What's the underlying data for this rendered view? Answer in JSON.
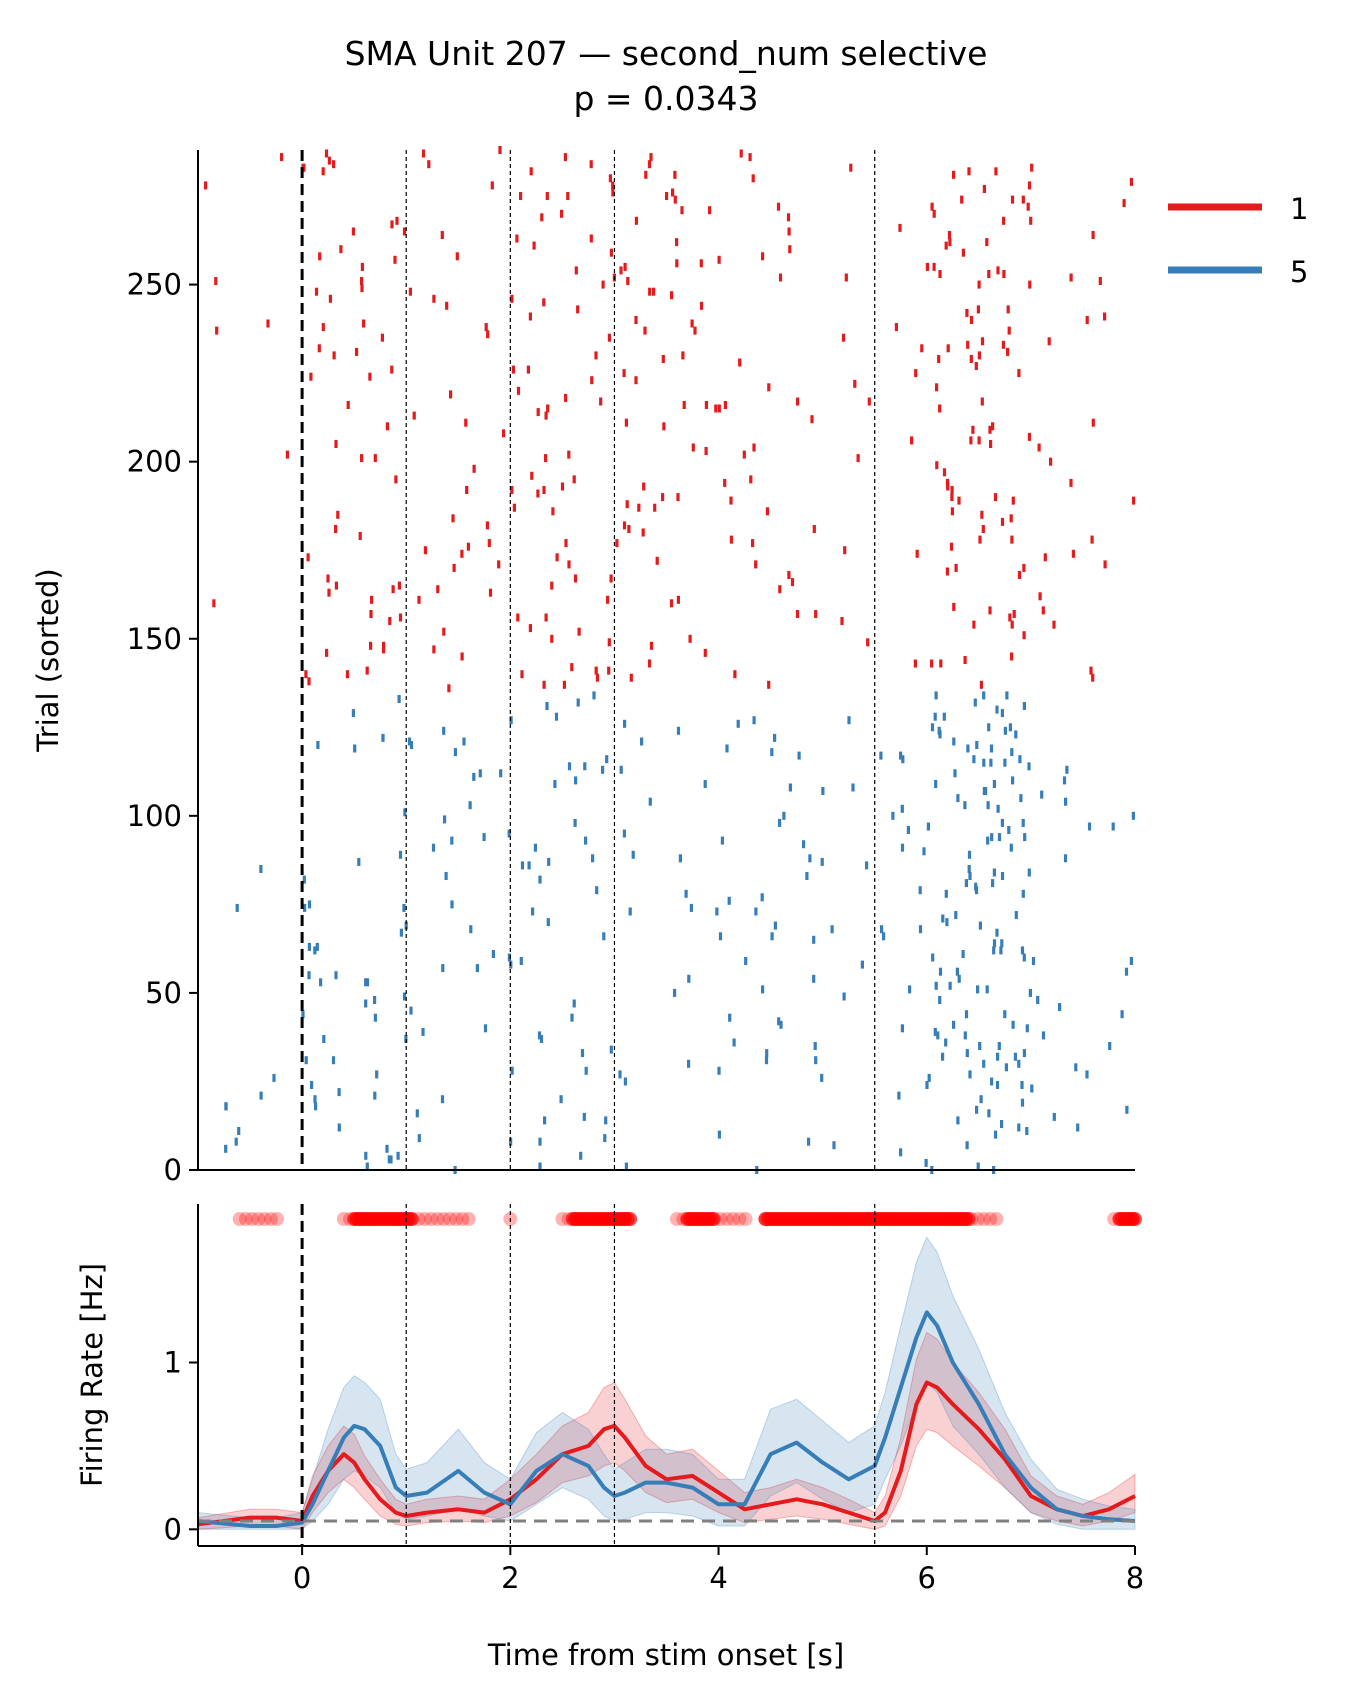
{
  "chart_data": [
    {
      "type": "scatter",
      "subtype": "raster",
      "title": "SMA Unit 207 — second_num selective",
      "subtitle": "p = 0.0343",
      "xlabel": "",
      "ylabel": "Trial (sorted)",
      "xlim": [
        -1,
        8
      ],
      "ylim": [
        0,
        288
      ],
      "yticks": [
        0,
        50,
        100,
        150,
        200,
        250
      ],
      "ytick_labels": [
        "0",
        "50",
        "100",
        "150",
        "200",
        "250"
      ],
      "stim_onset": 0,
      "event_lines": [
        1,
        2,
        3,
        5.5
      ],
      "legend": {
        "position": "top-right-outside",
        "entries": [
          {
            "label": "1",
            "color": "#e41a1c"
          },
          {
            "label": "5",
            "color": "#377eb8"
          }
        ]
      },
      "series": [
        {
          "name": "1",
          "color": "#e41a1c",
          "trial_range": [
            136,
            288
          ],
          "spike_density_by_second": {
            "x": [
              -1,
              0,
              1,
              2,
              3,
              4,
              5,
              6,
              7
            ],
            "weight": [
              0.25,
              1.0,
              0.6,
              1.0,
              0.9,
              0.55,
              0.35,
              1.7,
              0.5
            ]
          }
        },
        {
          "name": "5",
          "color": "#377eb8",
          "trial_range": [
            0,
            134
          ],
          "spike_density_by_second": {
            "x": [
              -1,
              0,
              1,
              2,
              3,
              4,
              5,
              6,
              7
            ],
            "weight": [
              0.2,
              1.0,
              0.6,
              0.9,
              0.55,
              0.8,
              0.8,
              2.2,
              0.55
            ]
          }
        }
      ]
    },
    {
      "type": "line",
      "title": "",
      "xlabel": "Time from stim onset [s]",
      "ylabel": "Firing Rate [Hz]",
      "xlim": [
        -1,
        8
      ],
      "ylim": [
        -0.1,
        1.95
      ],
      "xticks": [
        0,
        2,
        4,
        6,
        8
      ],
      "xtick_labels": [
        "0",
        "2",
        "4",
        "6",
        "8"
      ],
      "yticks": [
        0,
        1
      ],
      "ytick_labels": [
        "0",
        "1"
      ],
      "baseline": 0.05,
      "stim_onset": 0,
      "event_lines": [
        1,
        2,
        3,
        5.5
      ],
      "series": [
        {
          "name": "1",
          "color": "#e41a1c",
          "x": [
            -1,
            -0.5,
            -0.25,
            0,
            0.1,
            0.25,
            0.4,
            0.5,
            0.6,
            0.75,
            0.9,
            1.0,
            1.2,
            1.5,
            1.75,
            2.0,
            2.25,
            2.5,
            2.75,
            2.9,
            3.0,
            3.1,
            3.3,
            3.5,
            3.75,
            4.0,
            4.25,
            4.5,
            4.75,
            5.0,
            5.25,
            5.5,
            5.6,
            5.75,
            5.9,
            6.0,
            6.1,
            6.25,
            6.5,
            6.75,
            7.0,
            7.25,
            7.5,
            7.75,
            8.0
          ],
          "y": [
            0.03,
            0.07,
            0.07,
            0.05,
            0.2,
            0.35,
            0.45,
            0.4,
            0.3,
            0.18,
            0.1,
            0.08,
            0.1,
            0.12,
            0.1,
            0.18,
            0.3,
            0.45,
            0.5,
            0.6,
            0.62,
            0.55,
            0.38,
            0.3,
            0.32,
            0.22,
            0.12,
            0.15,
            0.18,
            0.15,
            0.1,
            0.05,
            0.1,
            0.35,
            0.75,
            0.88,
            0.85,
            0.75,
            0.6,
            0.42,
            0.2,
            0.12,
            0.08,
            0.12,
            0.2
          ],
          "ci_lower": [
            0.0,
            0.02,
            0.02,
            0.0,
            0.1,
            0.22,
            0.3,
            0.25,
            0.18,
            0.08,
            0.03,
            0.02,
            0.04,
            0.05,
            0.04,
            0.08,
            0.16,
            0.28,
            0.32,
            0.38,
            0.4,
            0.35,
            0.22,
            0.16,
            0.18,
            0.1,
            0.04,
            0.06,
            0.08,
            0.06,
            0.03,
            0.0,
            0.02,
            0.2,
            0.5,
            0.6,
            0.58,
            0.5,
            0.38,
            0.25,
            0.1,
            0.05,
            0.02,
            0.05,
            0.1
          ],
          "ci_upper": [
            0.07,
            0.12,
            0.12,
            0.1,
            0.32,
            0.5,
            0.62,
            0.57,
            0.44,
            0.3,
            0.18,
            0.15,
            0.18,
            0.2,
            0.18,
            0.3,
            0.45,
            0.62,
            0.7,
            0.85,
            0.88,
            0.78,
            0.56,
            0.45,
            0.48,
            0.35,
            0.22,
            0.25,
            0.3,
            0.25,
            0.18,
            0.1,
            0.2,
            0.55,
            1.02,
            1.18,
            1.14,
            1.0,
            0.82,
            0.6,
            0.32,
            0.2,
            0.15,
            0.22,
            0.33
          ]
        },
        {
          "name": "5",
          "color": "#377eb8",
          "x": [
            -1,
            -0.5,
            -0.25,
            0,
            0.1,
            0.25,
            0.4,
            0.5,
            0.6,
            0.75,
            0.9,
            1.0,
            1.2,
            1.5,
            1.75,
            2.0,
            2.25,
            2.5,
            2.75,
            2.9,
            3.0,
            3.1,
            3.3,
            3.5,
            3.75,
            4.0,
            4.25,
            4.5,
            4.75,
            5.0,
            5.25,
            5.5,
            5.6,
            5.75,
            5.9,
            6.0,
            6.1,
            6.25,
            6.5,
            6.75,
            7.0,
            7.25,
            7.5,
            7.75,
            8.0
          ],
          "y": [
            0.05,
            0.02,
            0.02,
            0.04,
            0.15,
            0.35,
            0.55,
            0.62,
            0.6,
            0.5,
            0.25,
            0.2,
            0.22,
            0.35,
            0.22,
            0.15,
            0.35,
            0.45,
            0.38,
            0.25,
            0.2,
            0.22,
            0.28,
            0.28,
            0.25,
            0.15,
            0.15,
            0.45,
            0.52,
            0.4,
            0.3,
            0.38,
            0.55,
            0.85,
            1.15,
            1.3,
            1.22,
            1.0,
            0.75,
            0.45,
            0.25,
            0.12,
            0.08,
            0.06,
            0.05
          ],
          "ci_lower": [
            0.0,
            0.0,
            0.0,
            0.0,
            0.05,
            0.15,
            0.3,
            0.35,
            0.32,
            0.25,
            0.1,
            0.06,
            0.08,
            0.12,
            0.08,
            0.05,
            0.15,
            0.25,
            0.18,
            0.08,
            0.05,
            0.06,
            0.1,
            0.1,
            0.08,
            0.02,
            0.02,
            0.2,
            0.28,
            0.18,
            0.1,
            0.15,
            0.3,
            0.5,
            0.75,
            0.88,
            0.82,
            0.62,
            0.45,
            0.25,
            0.1,
            0.03,
            0.0,
            0.0,
            0.0
          ],
          "ci_upper": [
            0.1,
            0.07,
            0.07,
            0.1,
            0.3,
            0.6,
            0.85,
            0.92,
            0.88,
            0.78,
            0.45,
            0.36,
            0.4,
            0.6,
            0.4,
            0.3,
            0.58,
            0.7,
            0.6,
            0.45,
            0.36,
            0.4,
            0.48,
            0.48,
            0.45,
            0.3,
            0.3,
            0.72,
            0.78,
            0.65,
            0.52,
            0.62,
            0.82,
            1.22,
            1.6,
            1.75,
            1.66,
            1.4,
            1.08,
            0.7,
            0.42,
            0.24,
            0.18,
            0.14,
            0.12
          ]
        }
      ],
      "significance": {
        "y": 1.86,
        "marker_color": "#ff0000",
        "strong_intervals": [
          [
            0.5,
            1.05
          ],
          [
            2.6,
            3.15
          ],
          [
            3.7,
            3.95
          ],
          [
            4.45,
            6.4
          ],
          [
            7.85,
            8.0
          ]
        ],
        "weak_intervals": [
          [
            -0.6,
            -0.2
          ],
          [
            0.4,
            1.6
          ],
          [
            2.5,
            3.15
          ],
          [
            3.6,
            4.3
          ],
          [
            4.45,
            6.7
          ],
          [
            7.8,
            8.0
          ]
        ],
        "isolated_points": [
          2.0
        ]
      }
    }
  ]
}
